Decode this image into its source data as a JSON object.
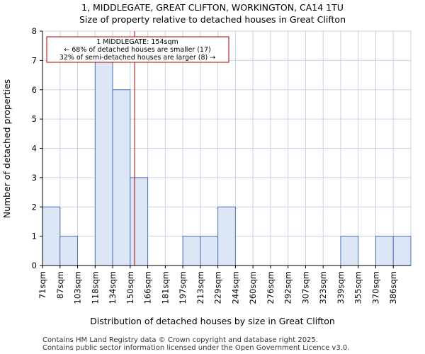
{
  "chart_data": {
    "type": "bar",
    "title": "1, MIDDLEGATE, GREAT CLIFTON, WORKINGTON, CA14 1TU",
    "subtitle": "Size of property relative to detached houses in Great Clifton",
    "xlabel": "Distribution of detached houses by size in Great Clifton",
    "ylabel": "Number of detached properties",
    "categories": [
      "71sqm",
      "87sqm",
      "103sqm",
      "118sqm",
      "134sqm",
      "150sqm",
      "166sqm",
      "181sqm",
      "197sqm",
      "213sqm",
      "229sqm",
      "244sqm",
      "260sqm",
      "276sqm",
      "292sqm",
      "307sqm",
      "323sqm",
      "339sqm",
      "355sqm",
      "370sqm",
      "386sqm"
    ],
    "values": [
      2,
      1,
      0,
      7,
      6,
      3,
      0,
      0,
      1,
      1,
      2,
      0,
      0,
      0,
      0,
      0,
      0,
      1,
      0,
      1,
      1
    ],
    "ylim": [
      0,
      8
    ],
    "yticks": [
      0,
      1,
      2,
      3,
      4,
      5,
      6,
      7,
      8
    ],
    "grid": true,
    "marker": {
      "value_sqm": 154,
      "color": "#b30000"
    },
    "annotation": {
      "line1": "1 MIDDLEGATE: 154sqm",
      "line2": "← 68% of detached houses are smaller (17)",
      "line3": "32% of semi-detached houses are larger (8) →",
      "border_color": "#b30000"
    },
    "bar_fill": "#dce6f4",
    "bar_edge": "#4a72b8"
  },
  "footer": {
    "line1": "Contains HM Land Registry data © Crown copyright and database right 2025.",
    "line2": "Contains public sector information licensed under the Open Government Licence v3.0."
  }
}
